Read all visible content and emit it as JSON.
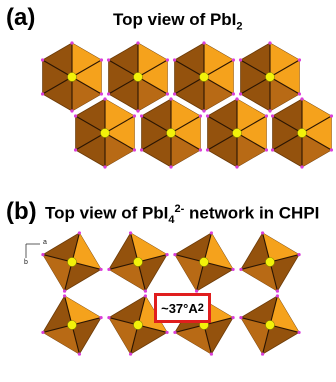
{
  "panel_a": {
    "label": "(a)",
    "title": "Top view of PbI",
    "title_sub": "2"
  },
  "panel_b": {
    "label": "(b)",
    "title_pre": "Top view of PbI",
    "title_sub": "4",
    "title_sup": "2-",
    "title_post": " network in CHPI",
    "axis_a": "a",
    "axis_b": "b",
    "area_label": "~37°A",
    "area_sup": "2"
  },
  "colors": {
    "octahedron_dark": "#94520d",
    "octahedron_mid": "#b86a15",
    "octahedron_light": "#f5a21c",
    "pb_atom": "#f2f20a",
    "iodine_vertex": "#d93fd9",
    "highlight_box": "#e01e1e"
  }
}
